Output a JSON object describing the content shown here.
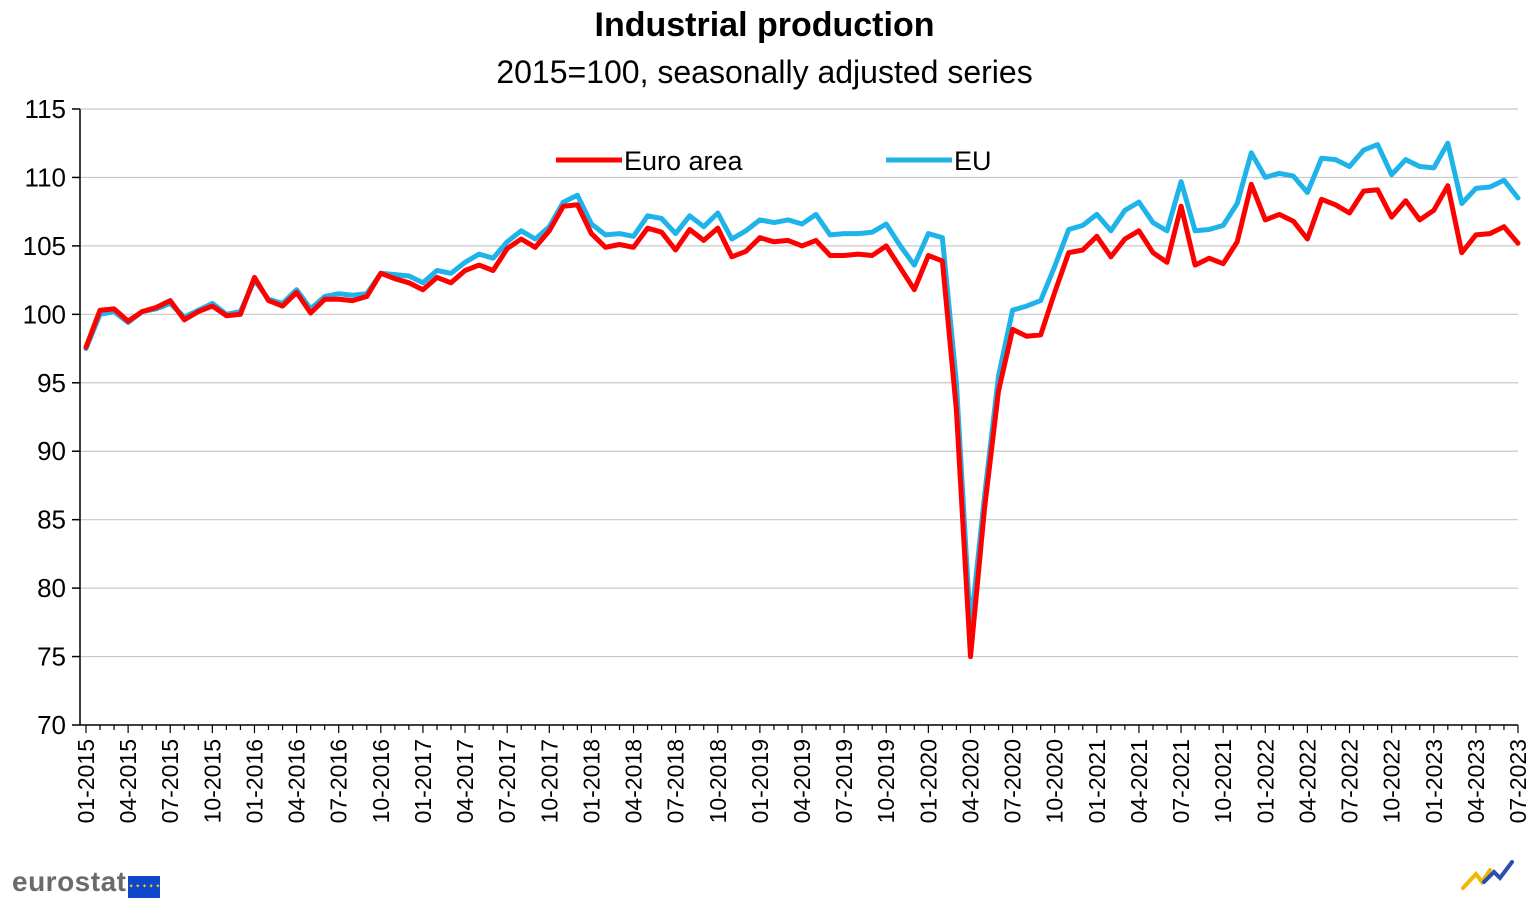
{
  "title": "Industrial production",
  "subtitle": "2015=100, seasonally adjusted series",
  "logo_text": "eurostat",
  "icons": {
    "logo_flag": "eu-flag-icon",
    "corner": "eurostat-swoosh-icon"
  },
  "chart_data": {
    "type": "line",
    "title": "Industrial production",
    "subtitle": "2015=100, seasonally adjusted series",
    "xlabel": "",
    "ylabel": "",
    "ylim": [
      70,
      115
    ],
    "y_ticks": [
      "70",
      "75",
      "80",
      "85",
      "90",
      "95",
      "100",
      "105",
      "110",
      "115"
    ],
    "x_tick_labels": [
      "01-2015",
      "04-2015",
      "07-2015",
      "10-2015",
      "01-2016",
      "04-2016",
      "07-2016",
      "10-2016",
      "01-2017",
      "04-2017",
      "07-2017",
      "10-2017",
      "01-2018",
      "04-2018",
      "07-2018",
      "10-2018",
      "01-2019",
      "04-2019",
      "07-2019",
      "10-2019",
      "01-2020",
      "04-2020",
      "07-2020",
      "10-2020",
      "01-2021",
      "04-2021",
      "07-2021",
      "10-2021",
      "01-2022",
      "04-2022",
      "07-2022",
      "10-2022",
      "01-2023",
      "04-2023",
      "07-2023"
    ],
    "x_start": "01-2015",
    "x_end": "07-2023",
    "grid": "horizontal",
    "legend": "top-center",
    "series": [
      {
        "name": "Euro area",
        "color": "#ff0000",
        "values": [
          97.6,
          100.3,
          100.4,
          99.5,
          100.2,
          100.5,
          101.0,
          99.6,
          100.2,
          100.6,
          99.9,
          100.0,
          102.7,
          101.0,
          100.6,
          101.6,
          100.1,
          101.1,
          101.1,
          101.0,
          101.3,
          103.0,
          102.6,
          102.3,
          101.8,
          102.7,
          102.3,
          103.2,
          103.6,
          103.2,
          104.8,
          105.5,
          104.9,
          106.1,
          107.9,
          108.0,
          105.9,
          104.9,
          105.1,
          104.9,
          106.3,
          106.0,
          104.7,
          106.2,
          105.4,
          106.3,
          104.2,
          104.6,
          105.6,
          105.3,
          105.4,
          105.0,
          105.4,
          104.3,
          104.3,
          104.4,
          104.3,
          105.0,
          103.4,
          101.8,
          104.3,
          103.9,
          93.0,
          75.0,
          85.8,
          94.4,
          98.9,
          98.4,
          98.5,
          101.6,
          104.5,
          104.7,
          105.7,
          104.2,
          105.5,
          106.1,
          104.5,
          103.8,
          107.9,
          103.6,
          104.1,
          103.7,
          105.3,
          109.5,
          106.9,
          107.3,
          106.8,
          105.5,
          108.4,
          108.0,
          107.4,
          109.0,
          109.1,
          107.1,
          108.3,
          106.9,
          107.6,
          109.4,
          104.5,
          105.8,
          105.9,
          106.4,
          105.2
        ]
      },
      {
        "name": "EU",
        "color": "#1fb4e9",
        "values": [
          97.5,
          100.0,
          100.2,
          99.4,
          100.2,
          100.4,
          100.8,
          99.8,
          100.3,
          100.8,
          100.0,
          100.2,
          102.5,
          101.1,
          100.8,
          101.8,
          100.4,
          101.3,
          101.5,
          101.4,
          101.5,
          103.0,
          102.9,
          102.8,
          102.3,
          103.2,
          103.0,
          103.8,
          104.4,
          104.1,
          105.3,
          106.1,
          105.5,
          106.4,
          108.2,
          108.7,
          106.6,
          105.8,
          105.9,
          105.7,
          107.2,
          107.0,
          105.9,
          107.2,
          106.4,
          107.4,
          105.5,
          106.1,
          106.9,
          106.7,
          106.9,
          106.6,
          107.3,
          105.8,
          105.9,
          105.9,
          106.0,
          106.6,
          105.0,
          103.6,
          105.9,
          105.6,
          95.0,
          77.0,
          86.7,
          95.5,
          100.3,
          100.6,
          101.0,
          103.5,
          106.2,
          106.5,
          107.3,
          106.1,
          107.6,
          108.2,
          106.7,
          106.1,
          109.7,
          106.1,
          106.2,
          106.5,
          108.1,
          111.8,
          110.0,
          110.3,
          110.1,
          108.9,
          111.4,
          111.3,
          110.8,
          112.0,
          112.4,
          110.2,
          111.3,
          110.8,
          110.7,
          112.5,
          108.1,
          109.2,
          109.3,
          109.8,
          108.5
        ]
      }
    ]
  }
}
